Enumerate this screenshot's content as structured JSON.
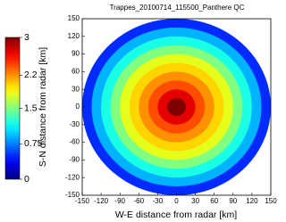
{
  "chart_data": {
    "type": "radar-map",
    "title": "Trappes_20100714_115500_Panthere QC",
    "x_label": "W-E distance from radar [km]",
    "y_label": "S-N distance from radar [km]",
    "xlim": [
      -150,
      150
    ],
    "ylim": [
      -150,
      150
    ],
    "xticks": [
      -150,
      -120,
      -90,
      -60,
      -30,
      0,
      30,
      60,
      90,
      120,
      150
    ],
    "yticks": [
      -150,
      -120,
      -90,
      -60,
      -30,
      0,
      30,
      60,
      90,
      120,
      150
    ],
    "colormap": "jet",
    "clim": [
      0,
      3
    ],
    "cticks": [
      0,
      0.75,
      1.5,
      2.2,
      3
    ],
    "r_bins": [
      0,
      15,
      30,
      45,
      60,
      75,
      90,
      105,
      120,
      135,
      150
    ],
    "values": [
      3,
      2.7,
      2.4,
      2.2,
      2,
      1.8,
      1.5,
      1.2,
      0.9,
      0.5
    ]
  }
}
